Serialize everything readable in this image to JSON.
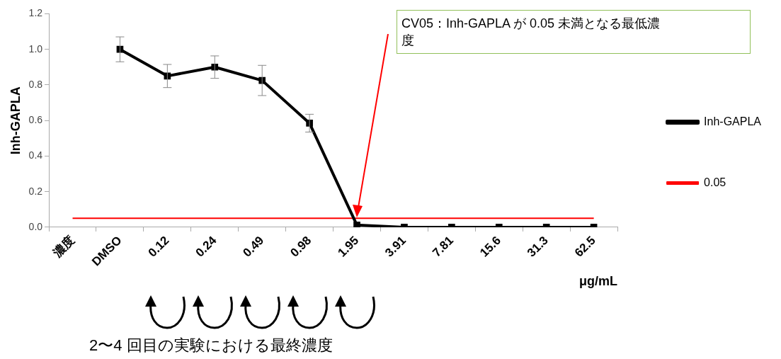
{
  "chart_data": {
    "type": "line",
    "ylabel": "Inh-GAPLA",
    "xlabel": "μg/mL",
    "categories": [
      "濃度",
      "DMSO",
      "0.12",
      "0.24",
      "0.49",
      "0.98",
      "1.95",
      "3.91",
      "7.81",
      "15.6",
      "31.3",
      "62.5"
    ],
    "series": [
      {
        "name": "Inh-GAPLA",
        "color": "#000000",
        "marker": "square",
        "values": [
          null,
          1.0,
          0.85,
          0.9,
          0.825,
          0.585,
          0.012,
          0,
          0,
          0,
          0,
          0
        ],
        "errors": [
          null,
          0.07,
          0.065,
          0.063,
          0.085,
          0.05,
          null,
          null,
          null,
          null,
          null,
          null
        ]
      },
      {
        "name": "0.05",
        "color": "#ff0000",
        "marker": "none",
        "values": [
          0.05,
          0.05,
          0.05,
          0.05,
          0.05,
          0.05,
          0.05,
          0.05,
          0.05,
          0.05,
          0.05,
          0.05
        ]
      }
    ],
    "ylim": [
      0,
      1.2
    ],
    "yticks": [
      {
        "value": 0,
        "label": "0.0"
      },
      0.2,
      0.4,
      0.6,
      0.8,
      {
        "value": 1,
        "label": "1.0"
      },
      1.2
    ],
    "grid": false,
    "legend": "right",
    "annotations": [
      "CV05：Inh-GAPLA が 0.05 未満となる最低濃度",
      "2〜4 回目の実験における最終濃度"
    ]
  }
}
